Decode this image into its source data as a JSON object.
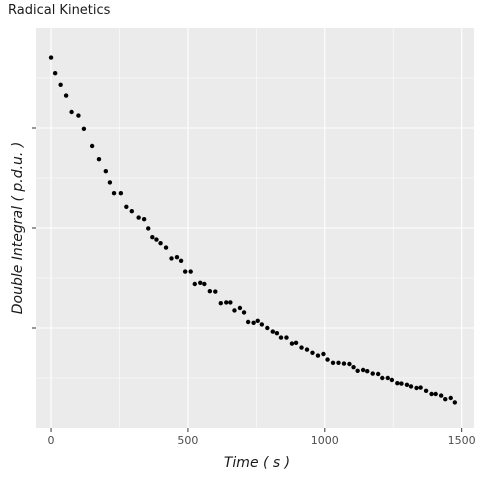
{
  "chart_data": {
    "type": "scatter",
    "title": "Radical Kinetics",
    "xlabel": "Time ( s )",
    "ylabel": "Double Integral ( p.d.u. )",
    "xlim": [
      -55,
      1545
    ],
    "ylim": [
      0,
      1
    ],
    "y_tick_labels": "none",
    "x_ticks": [
      0,
      500,
      1000,
      1500
    ],
    "x_tick_labels": [
      "0",
      "500",
      "1000",
      "1500"
    ],
    "y_major_ticks": [
      0.25,
      0.5,
      0.75
    ],
    "y_minor_ticks": [
      0.125,
      0.375,
      0.625,
      0.875
    ],
    "grid": true,
    "background": "#ebebeb",
    "point_color": "#000000",
    "x": [
      0,
      15,
      35,
      55,
      75,
      100,
      120,
      150,
      175,
      200,
      215,
      230,
      255,
      275,
      295,
      320,
      340,
      355,
      370,
      385,
      400,
      420,
      440,
      460,
      475,
      490,
      510,
      525,
      545,
      560,
      580,
      600,
      620,
      640,
      655,
      670,
      690,
      705,
      720,
      740,
      755,
      770,
      790,
      810,
      825,
      840,
      860,
      880,
      895,
      915,
      935,
      955,
      975,
      995,
      1010,
      1030,
      1050,
      1070,
      1090,
      1105,
      1120,
      1140,
      1155,
      1175,
      1195,
      1210,
      1230,
      1245,
      1265,
      1280,
      1300,
      1315,
      1335,
      1350,
      1370,
      1390,
      1405,
      1425,
      1440,
      1460,
      1475
    ],
    "y": [
      0.926,
      0.887,
      0.858,
      0.831,
      0.79,
      0.781,
      0.748,
      0.705,
      0.672,
      0.642,
      0.614,
      0.587,
      0.587,
      0.553,
      0.542,
      0.526,
      0.522,
      0.499,
      0.477,
      0.471,
      0.462,
      0.451,
      0.424,
      0.427,
      0.418,
      0.391,
      0.391,
      0.36,
      0.363,
      0.36,
      0.342,
      0.341,
      0.312,
      0.314,
      0.314,
      0.294,
      0.3,
      0.289,
      0.265,
      0.263,
      0.268,
      0.259,
      0.25,
      0.241,
      0.237,
      0.226,
      0.226,
      0.211,
      0.213,
      0.201,
      0.196,
      0.188,
      0.181,
      0.185,
      0.171,
      0.163,
      0.163,
      0.161,
      0.16,
      0.152,
      0.143,
      0.145,
      0.142,
      0.136,
      0.135,
      0.125,
      0.125,
      0.12,
      0.112,
      0.111,
      0.108,
      0.104,
      0.1,
      0.101,
      0.093,
      0.085,
      0.085,
      0.081,
      0.072,
      0.075,
      0.064
    ]
  }
}
